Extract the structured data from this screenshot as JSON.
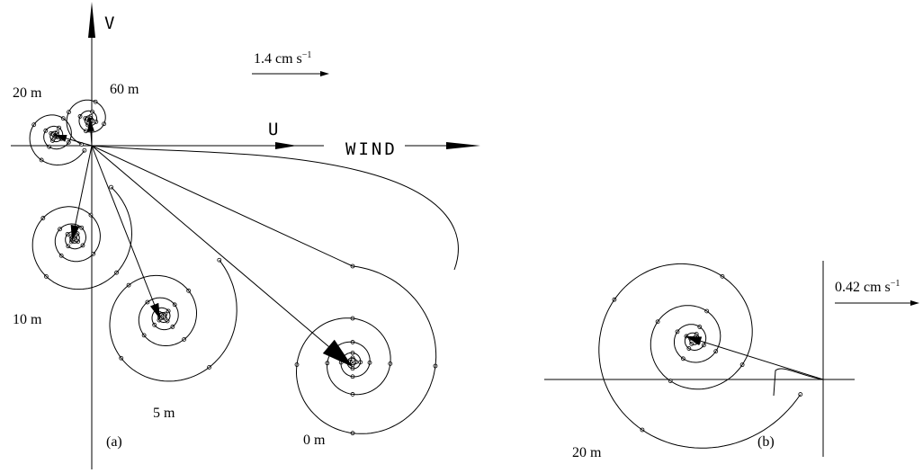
{
  "panel_a": {
    "axis_v": "V",
    "axis_u": "U",
    "wind": "WIND",
    "scale": {
      "text": "1.4 cm s",
      "exponent": "−1"
    },
    "depth_labels": [
      "60 m",
      "20 m",
      "10 m",
      "5 m",
      "0 m"
    ],
    "label": "(a)"
  },
  "panel_b": {
    "scale": {
      "text": "0.42 cm s",
      "exponent": "−1"
    },
    "depth_label": "20 m",
    "label": "(b)"
  }
}
